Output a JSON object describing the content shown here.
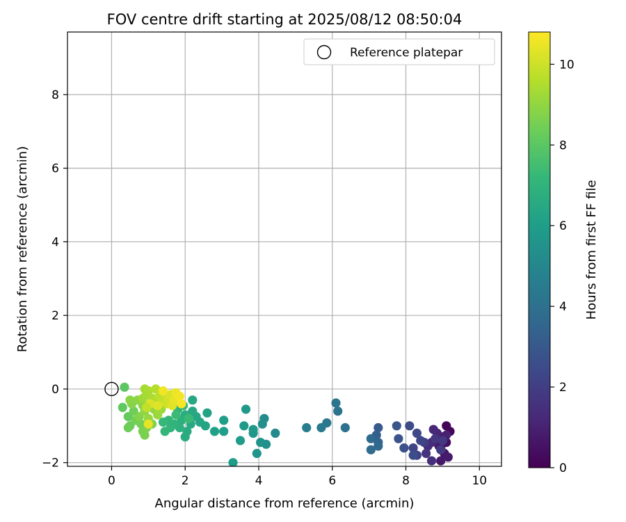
{
  "chart_data": {
    "type": "scatter",
    "title": "FOV centre drift starting at 2025/08/12 08:50:04",
    "xlabel": "Angular distance from reference (arcmin)",
    "ylabel": "Rotation from reference (arcmin)",
    "xlim": [
      -1.2,
      10.6
    ],
    "ylim": [
      -2.1,
      9.7
    ],
    "xticks": [
      0,
      2,
      4,
      6,
      8,
      10
    ],
    "yticks": [
      -2,
      0,
      2,
      4,
      6,
      8
    ],
    "grid": true,
    "legend": {
      "position": "top-right",
      "entries": [
        "Reference platepar"
      ]
    },
    "reference_point": {
      "name": "Reference platepar",
      "x": 0,
      "y": 0
    },
    "colorbar": {
      "label": "Hours from first FF file",
      "range": [
        0,
        10.8
      ],
      "ticks": [
        0,
        2,
        4,
        6,
        8,
        10
      ],
      "colormap": "viridis",
      "colors": [
        "#440154",
        "#482878",
        "#3e4989",
        "#31688e",
        "#26828e",
        "#1f9e89",
        "#35b779",
        "#6ece58",
        "#b5de2b",
        "#fde725"
      ]
    },
    "points": [
      {
        "x": 9.1,
        "y": -1.0,
        "c": 0.1
      },
      {
        "x": 9.2,
        "y": -1.15,
        "c": 0.2
      },
      {
        "x": 9.0,
        "y": -1.3,
        "c": 0.3
      },
      {
        "x": 9.1,
        "y": -1.45,
        "c": 0.4
      },
      {
        "x": 8.95,
        "y": -1.6,
        "c": 0.5
      },
      {
        "x": 9.05,
        "y": -1.75,
        "c": 0.6
      },
      {
        "x": 8.95,
        "y": -1.95,
        "c": 0.7
      },
      {
        "x": 9.15,
        "y": -1.85,
        "c": 0.8
      },
      {
        "x": 8.9,
        "y": -1.55,
        "c": 0.9
      },
      {
        "x": 9.1,
        "y": -1.25,
        "c": 1.0
      },
      {
        "x": 8.85,
        "y": -1.2,
        "c": 1.1
      },
      {
        "x": 8.75,
        "y": -1.1,
        "c": 1.2
      },
      {
        "x": 8.7,
        "y": -1.45,
        "c": 1.3
      },
      {
        "x": 8.6,
        "y": -1.55,
        "c": 1.4
      },
      {
        "x": 8.7,
        "y": -1.95,
        "c": 1.5
      },
      {
        "x": 8.55,
        "y": -1.75,
        "c": 1.6
      },
      {
        "x": 8.8,
        "y": -1.35,
        "c": 1.7
      },
      {
        "x": 9.0,
        "y": -1.4,
        "c": 1.8
      },
      {
        "x": 8.95,
        "y": -1.65,
        "c": 1.9
      },
      {
        "x": 8.5,
        "y": -1.45,
        "c": 2.0
      },
      {
        "x": 8.3,
        "y": -1.8,
        "c": 2.1
      },
      {
        "x": 8.2,
        "y": -1.6,
        "c": 2.2
      },
      {
        "x": 8.4,
        "y": -1.4,
        "c": 2.3
      },
      {
        "x": 8.3,
        "y": -1.2,
        "c": 2.4
      },
      {
        "x": 8.1,
        "y": -1.0,
        "c": 2.5
      },
      {
        "x": 8.2,
        "y": -1.8,
        "c": 2.6
      },
      {
        "x": 7.95,
        "y": -1.6,
        "c": 2.7
      },
      {
        "x": 7.8,
        "y": -1.35,
        "c": 2.8
      },
      {
        "x": 7.75,
        "y": -1.0,
        "c": 2.9
      },
      {
        "x": 7.25,
        "y": -1.05,
        "c": 3.1
      },
      {
        "x": 7.2,
        "y": -1.25,
        "c": 3.3
      },
      {
        "x": 7.25,
        "y": -1.45,
        "c": 3.5
      },
      {
        "x": 7.25,
        "y": -1.55,
        "c": 3.6
      },
      {
        "x": 7.05,
        "y": -1.35,
        "c": 3.7
      },
      {
        "x": 7.05,
        "y": -1.65,
        "c": 3.8
      },
      {
        "x": 6.35,
        "y": -1.05,
        "c": 4.0
      },
      {
        "x": 6.15,
        "y": -0.6,
        "c": 4.1
      },
      {
        "x": 6.1,
        "y": -0.38,
        "c": 4.2
      },
      {
        "x": 5.85,
        "y": -0.92,
        "c": 4.3
      },
      {
        "x": 5.7,
        "y": -1.05,
        "c": 4.4
      },
      {
        "x": 5.3,
        "y": -1.05,
        "c": 4.6
      },
      {
        "x": 4.45,
        "y": -1.2,
        "c": 5.1
      },
      {
        "x": 4.15,
        "y": -0.8,
        "c": 5.2
      },
      {
        "x": 4.1,
        "y": -0.95,
        "c": 5.3
      },
      {
        "x": 4.2,
        "y": -1.5,
        "c": 5.4
      },
      {
        "x": 4.05,
        "y": -1.45,
        "c": 5.5
      },
      {
        "x": 3.95,
        "y": -1.75,
        "c": 5.6
      },
      {
        "x": 3.85,
        "y": -1.2,
        "c": 5.7
      },
      {
        "x": 3.85,
        "y": -1.1,
        "c": 5.75
      },
      {
        "x": 3.65,
        "y": -0.55,
        "c": 5.8
      },
      {
        "x": 3.6,
        "y": -1.0,
        "c": 5.85
      },
      {
        "x": 3.5,
        "y": -1.4,
        "c": 5.9
      },
      {
        "x": 3.3,
        "y": -2.0,
        "c": 5.95
      },
      {
        "x": 3.05,
        "y": -1.15,
        "c": 6.0
      },
      {
        "x": 3.05,
        "y": -0.85,
        "c": 6.05
      },
      {
        "x": 2.8,
        "y": -1.15,
        "c": 6.1
      },
      {
        "x": 2.6,
        "y": -0.65,
        "c": 6.2
      },
      {
        "x": 2.55,
        "y": -1.0,
        "c": 6.3
      },
      {
        "x": 2.4,
        "y": -0.9,
        "c": 6.35
      },
      {
        "x": 2.3,
        "y": -0.75,
        "c": 6.4
      },
      {
        "x": 2.2,
        "y": -0.3,
        "c": 6.45
      },
      {
        "x": 2.2,
        "y": -0.6,
        "c": 6.5
      },
      {
        "x": 2.15,
        "y": -0.95,
        "c": 6.55
      },
      {
        "x": 2.05,
        "y": -1.15,
        "c": 6.6
      },
      {
        "x": 2.0,
        "y": -1.3,
        "c": 6.65
      },
      {
        "x": 2.0,
        "y": -0.7,
        "c": 6.7
      },
      {
        "x": 1.9,
        "y": -0.85,
        "c": 6.8
      },
      {
        "x": 1.85,
        "y": -1.05,
        "c": 6.85
      },
      {
        "x": 1.8,
        "y": -0.55,
        "c": 6.9
      },
      {
        "x": 1.7,
        "y": -0.95,
        "c": 7.0
      },
      {
        "x": 1.6,
        "y": -1.05,
        "c": 7.05
      },
      {
        "x": 1.55,
        "y": -0.85,
        "c": 7.1
      },
      {
        "x": 1.45,
        "y": -1.15,
        "c": 7.15
      },
      {
        "x": 1.4,
        "y": -0.9,
        "c": 7.2
      },
      {
        "x": 1.95,
        "y": -0.45,
        "c": 7.25
      },
      {
        "x": 2.1,
        "y": -0.8,
        "c": 7.3
      },
      {
        "x": 1.75,
        "y": -0.7,
        "c": 7.35
      },
      {
        "x": 0.35,
        "y": 0.05,
        "c": 8.0
      },
      {
        "x": 0.3,
        "y": -0.5,
        "c": 8.1
      },
      {
        "x": 0.45,
        "y": -0.75,
        "c": 8.2
      },
      {
        "x": 0.5,
        "y": -1.0,
        "c": 8.3
      },
      {
        "x": 0.45,
        "y": -1.05,
        "c": 8.35
      },
      {
        "x": 0.6,
        "y": -0.6,
        "c": 8.4
      },
      {
        "x": 0.65,
        "y": -0.85,
        "c": 8.45
      },
      {
        "x": 0.8,
        "y": -0.95,
        "c": 8.5
      },
      {
        "x": 0.85,
        "y": -1.15,
        "c": 8.55
      },
      {
        "x": 0.9,
        "y": -1.25,
        "c": 8.6
      },
      {
        "x": 0.95,
        "y": -1.05,
        "c": 8.65
      },
      {
        "x": 1.1,
        "y": -0.95,
        "c": 8.7
      },
      {
        "x": 0.75,
        "y": -0.75,
        "c": 8.75
      },
      {
        "x": 0.55,
        "y": -0.4,
        "c": 8.8
      },
      {
        "x": 0.5,
        "y": -0.3,
        "c": 8.85
      },
      {
        "x": 0.7,
        "y": -0.3,
        "c": 8.9
      },
      {
        "x": 0.85,
        "y": -0.45,
        "c": 8.95
      },
      {
        "x": 0.9,
        "y": -0.6,
        "c": 9.0
      },
      {
        "x": 1.0,
        "y": -0.8,
        "c": 9.05
      },
      {
        "x": 1.15,
        "y": -0.55,
        "c": 9.1
      },
      {
        "x": 1.25,
        "y": -0.7,
        "c": 9.15
      },
      {
        "x": 1.35,
        "y": -0.55,
        "c": 9.2
      },
      {
        "x": 0.85,
        "y": -0.25,
        "c": 9.25
      },
      {
        "x": 0.95,
        "y": -0.15,
        "c": 9.3
      },
      {
        "x": 0.9,
        "y": 0.0,
        "c": 9.35
      },
      {
        "x": 1.0,
        "y": -0.05,
        "c": 9.4
      },
      {
        "x": 1.1,
        "y": -0.25,
        "c": 9.45
      },
      {
        "x": 1.2,
        "y": -0.3,
        "c": 9.5
      },
      {
        "x": 1.2,
        "y": 0.0,
        "c": 9.6
      },
      {
        "x": 1.3,
        "y": -0.2,
        "c": 9.7
      },
      {
        "x": 1.4,
        "y": -0.35,
        "c": 9.8
      },
      {
        "x": 1.45,
        "y": -0.15,
        "c": 9.9
      },
      {
        "x": 1.5,
        "y": -0.4,
        "c": 10.0
      },
      {
        "x": 1.55,
        "y": -0.25,
        "c": 10.1
      },
      {
        "x": 1.6,
        "y": -0.15,
        "c": 10.2
      },
      {
        "x": 1.65,
        "y": -0.45,
        "c": 10.3
      },
      {
        "x": 1.7,
        "y": -0.3,
        "c": 10.4
      },
      {
        "x": 1.75,
        "y": -0.1,
        "c": 10.5
      },
      {
        "x": 1.85,
        "y": -0.2,
        "c": 10.6
      },
      {
        "x": 1.9,
        "y": -0.4,
        "c": 10.7
      },
      {
        "x": 1.05,
        "y": -0.4,
        "c": 10.2
      },
      {
        "x": 1.25,
        "y": -0.45,
        "c": 10.3
      },
      {
        "x": 1.0,
        "y": -0.95,
        "c": 10.4
      },
      {
        "x": 1.4,
        "y": -0.05,
        "c": 10.6
      },
      {
        "x": 0.95,
        "y": -0.5,
        "c": 9.8
      }
    ]
  }
}
